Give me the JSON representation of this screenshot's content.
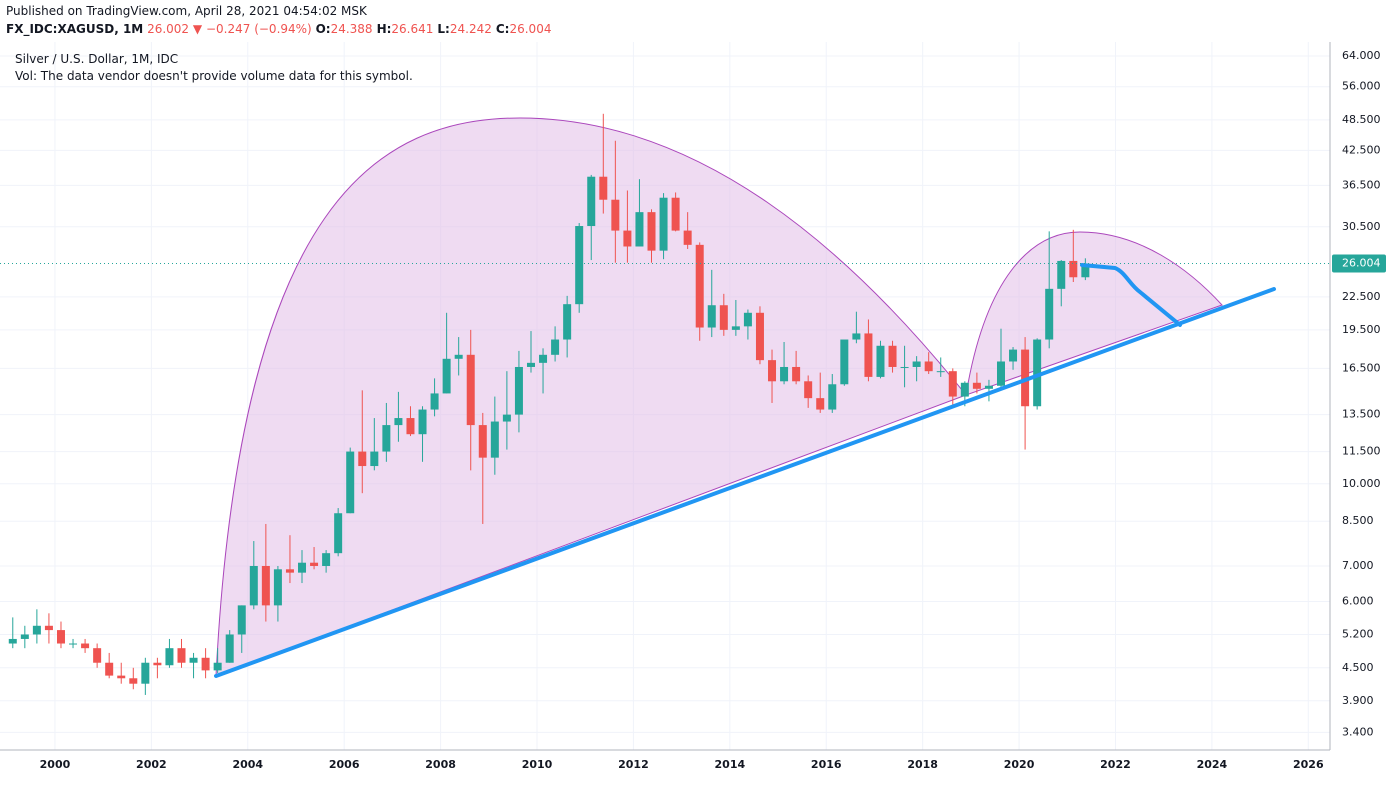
{
  "header": {
    "published": "Published on TradingView.com, April 28, 2021 04:54:02 MSK",
    "symbol": "FX_IDC:XAGUSD, 1M",
    "price": 26.002,
    "arrow": "▼",
    "change": "−0.247 (−0.94%)",
    "ohlc": [
      {
        "label": "O:",
        "value": 24.388
      },
      {
        "label": "H:",
        "value": 26.641
      },
      {
        "label": "L:",
        "value": 24.242
      },
      {
        "label": "C:",
        "value": 26.004
      }
    ]
  },
  "chart_data": {
    "type": "candlestick",
    "title": "Silver / U.S. Dollar, 1M, IDC",
    "subtitle": "Vol: The data vendor doesn't provide volume data for this symbol.",
    "log_scale": true,
    "grid": true,
    "up_color": "#26a69a",
    "down_color": "#ef5350",
    "xlim": [
      1998.86,
      2026.45
    ],
    "ylim": [
      3.15,
      68.0
    ],
    "xticks": [
      2000,
      2002,
      2004,
      2006,
      2008,
      2010,
      2012,
      2014,
      2016,
      2018,
      2020,
      2022,
      2024,
      2026
    ],
    "yticks": [
      {
        "value": 64,
        "label": "64.000"
      },
      {
        "value": 56,
        "label": "56.000"
      },
      {
        "value": 48.5,
        "label": "48.500"
      },
      {
        "value": 42.5,
        "label": "42.500"
      },
      {
        "value": 36.5,
        "label": "36.500"
      },
      {
        "value": 30.5,
        "label": "30.500"
      },
      {
        "value": 22.5,
        "label": "22.500"
      },
      {
        "value": 19.5,
        "label": "19.500"
      },
      {
        "value": 16.5,
        "label": "16.500"
      },
      {
        "value": 13.5,
        "label": "13.500"
      },
      {
        "value": 11.5,
        "label": "11.500"
      },
      {
        "value": 10,
        "label": "10.000"
      },
      {
        "value": 8.5,
        "label": "8.500"
      },
      {
        "value": 7,
        "label": "7.000"
      },
      {
        "value": 6,
        "label": "6.000"
      },
      {
        "value": 5.2,
        "label": "5.200"
      },
      {
        "value": 4.5,
        "label": "4.500"
      },
      {
        "value": 3.9,
        "label": "3.900"
      },
      {
        "value": 3.4,
        "label": "3.400"
      }
    ],
    "last_price": 26.004,
    "x": [
      1999.125,
      1999.375,
      1999.625,
      1999.875,
      2000.125,
      2000.375,
      2000.625,
      2000.875,
      2001.125,
      2001.375,
      2001.625,
      2001.875,
      2002.125,
      2002.375,
      2002.625,
      2002.875,
      2003.125,
      2003.375,
      2003.625,
      2003.875,
      2004.125,
      2004.375,
      2004.625,
      2004.875,
      2005.125,
      2005.375,
      2005.625,
      2005.875,
      2006.125,
      2006.375,
      2006.625,
      2006.875,
      2007.125,
      2007.375,
      2007.625,
      2007.875,
      2008.125,
      2008.375,
      2008.625,
      2008.875,
      2009.125,
      2009.375,
      2009.625,
      2009.875,
      2010.125,
      2010.375,
      2010.625,
      2010.875,
      2011.125,
      2011.375,
      2011.625,
      2011.875,
      2012.125,
      2012.375,
      2012.625,
      2012.875,
      2013.125,
      2013.375,
      2013.625,
      2013.875,
      2014.125,
      2014.375,
      2014.625,
      2014.875,
      2015.125,
      2015.375,
      2015.625,
      2015.875,
      2016.125,
      2016.375,
      2016.625,
      2016.875,
      2017.125,
      2017.375,
      2017.625,
      2017.875,
      2018.125,
      2018.375,
      2018.625,
      2018.875,
      2019.125,
      2019.375,
      2019.625,
      2019.875,
      2020.125,
      2020.375,
      2020.625,
      2020.875,
      2021.125,
      2021.375
    ],
    "open": [
      5.0,
      5.1,
      5.2,
      5.4,
      5.3,
      5.0,
      5.0,
      4.9,
      4.6,
      4.35,
      4.3,
      4.2,
      4.6,
      4.55,
      4.9,
      4.6,
      4.7,
      4.45,
      4.6,
      5.2,
      5.9,
      7.0,
      5.9,
      6.9,
      6.8,
      7.1,
      7.0,
      7.4,
      8.8,
      11.5,
      10.8,
      11.5,
      12.9,
      13.3,
      12.4,
      13.8,
      14.8,
      17.2,
      17.5,
      12.9,
      11.2,
      13.1,
      13.5,
      16.6,
      16.9,
      17.5,
      18.7,
      21.8,
      30.6,
      37.9,
      34.3,
      30.0,
      28.0,
      32.5,
      27.5,
      34.6,
      30.0,
      28.2,
      19.7,
      21.7,
      19.5,
      19.8,
      21.0,
      17.1,
      15.6,
      16.6,
      15.6,
      14.5,
      13.8,
      15.4,
      18.7,
      19.2,
      15.9,
      18.2,
      16.6,
      16.6,
      17.0,
      16.3,
      16.3,
      14.6,
      15.5,
      15.1,
      15.3,
      17.0,
      17.9,
      14.0,
      18.7,
      23.3,
      26.3,
      24.5
    ],
    "high": [
      5.6,
      5.4,
      5.8,
      5.7,
      5.5,
      5.1,
      5.1,
      5.0,
      4.8,
      4.6,
      4.5,
      4.7,
      4.7,
      5.1,
      5.1,
      4.8,
      4.9,
      4.9,
      5.3,
      5.9,
      7.8,
      8.4,
      7.0,
      8.0,
      7.5,
      7.6,
      7.5,
      9.0,
      11.7,
      15.0,
      13.3,
      14.2,
      14.9,
      14.0,
      14.0,
      15.8,
      21.0,
      18.9,
      19.5,
      13.6,
      14.6,
      16.3,
      17.8,
      19.4,
      18.0,
      19.8,
      22.6,
      31.0,
      38.2,
      49.8,
      44.3,
      35.7,
      37.5,
      32.9,
      35.3,
      35.4,
      32.5,
      28.5,
      25.3,
      22.8,
      22.2,
      21.3,
      21.6,
      17.9,
      18.5,
      17.8,
      16.0,
      16.2,
      16.1,
      18.4,
      21.1,
      20.4,
      18.6,
      18.6,
      18.2,
      17.4,
      17.7,
      17.3,
      16.5,
      15.6,
      16.2,
      15.7,
      19.6,
      18.1,
      18.9,
      18.8,
      29.9,
      26.4,
      30.1,
      26.6
    ],
    "low": [
      4.9,
      4.9,
      5.0,
      5.0,
      4.9,
      4.9,
      4.8,
      4.5,
      4.3,
      4.2,
      4.1,
      4.0,
      4.3,
      4.5,
      4.5,
      4.3,
      4.3,
      4.4,
      4.6,
      4.8,
      5.8,
      5.5,
      5.5,
      6.5,
      6.5,
      6.9,
      6.8,
      7.3,
      8.8,
      9.6,
      10.6,
      11.0,
      12.0,
      12.3,
      11.0,
      13.4,
      14.8,
      16.0,
      10.6,
      8.4,
      10.4,
      11.6,
      12.5,
      16.2,
      14.8,
      17.0,
      17.3,
      21.0,
      26.4,
      32.3,
      26.1,
      26.1,
      28.0,
      26.1,
      26.5,
      29.9,
      27.7,
      18.6,
      18.9,
      19.0,
      19.0,
      18.7,
      16.8,
      14.2,
      15.4,
      15.4,
      13.9,
      13.6,
      13.6,
      15.3,
      18.4,
      15.6,
      15.8,
      16.2,
      15.2,
      15.6,
      16.1,
      15.9,
      13.9,
      14.0,
      14.8,
      14.3,
      15.0,
      16.4,
      11.6,
      13.8,
      18.0,
      21.6,
      24.0,
      24.2
    ],
    "close": [
      5.1,
      5.2,
      5.4,
      5.3,
      5.0,
      5.0,
      4.9,
      4.6,
      4.35,
      4.3,
      4.2,
      4.6,
      4.55,
      4.9,
      4.6,
      4.7,
      4.45,
      4.6,
      5.2,
      5.9,
      7.0,
      5.9,
      6.9,
      6.8,
      7.1,
      7.0,
      7.4,
      8.8,
      11.5,
      10.8,
      11.5,
      12.9,
      13.3,
      12.4,
      13.8,
      14.8,
      17.2,
      17.5,
      12.9,
      11.2,
      13.1,
      13.5,
      16.6,
      16.9,
      17.5,
      18.7,
      21.8,
      30.6,
      37.9,
      34.3,
      30.0,
      28.0,
      32.5,
      27.5,
      34.6,
      30.0,
      28.2,
      19.7,
      21.7,
      19.5,
      19.8,
      21.0,
      17.1,
      15.6,
      16.6,
      15.6,
      14.5,
      13.8,
      15.4,
      18.7,
      19.2,
      15.9,
      18.2,
      16.6,
      16.6,
      17.0,
      16.3,
      16.3,
      14.6,
      15.5,
      15.1,
      15.3,
      17.0,
      17.9,
      14.0,
      18.7,
      23.3,
      26.3,
      24.5,
      26.0
    ]
  }
}
